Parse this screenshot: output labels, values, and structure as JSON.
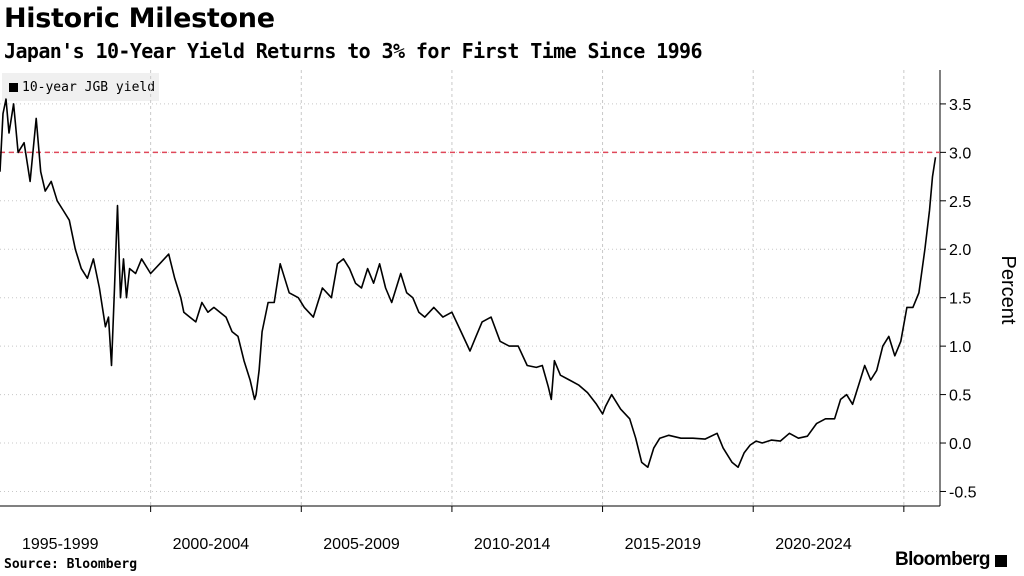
{
  "header": {
    "title": "Historic Milestone",
    "subtitle": "Japan's 10-Year Yield Returns to 3% for First Time Since 1996"
  },
  "footer": {
    "source": "Source: Bloomberg",
    "brand": "Bloomberg"
  },
  "colors": {
    "line": "#000000",
    "reference_line": "#e0485a",
    "grid": "#c8c8c8",
    "legend_bg": "#f0f0f0"
  },
  "chart_data": {
    "type": "line",
    "title": "Historic Milestone",
    "subtitle": "Japan's 10-Year Yield Returns to 3% for First Time Since 1996",
    "ylabel": "Percent",
    "xlabel": "",
    "ylim": [
      -0.65,
      3.85
    ],
    "xlim": [
      1995.0,
      2026.2
    ],
    "y_ticks": [
      "-0.5",
      "0.0",
      "0.5",
      "1.0",
      "1.5",
      "2.0",
      "2.5",
      "3.0",
      "3.5"
    ],
    "y_tick_values": [
      -0.5,
      0.0,
      0.5,
      1.0,
      1.5,
      2.0,
      2.5,
      3.0,
      3.5
    ],
    "x_tick_labels": [
      "1995-1999",
      "2000-2004",
      "2005-2009",
      "2010-2014",
      "2015-2019",
      "2020-2024"
    ],
    "x_tick_centers": [
      1997.0,
      2002.0,
      2007.0,
      2012.0,
      2017.0,
      2022.0
    ],
    "grid": "vertical dashed, horizontal dotted",
    "legend": "top-left",
    "reference_line": {
      "y": 3.0,
      "style": "dashed",
      "color": "#e0485a"
    },
    "series": [
      {
        "name": "10-year JGB yield",
        "x": [
          1995.0,
          1995.1,
          1995.2,
          1995.3,
          1995.45,
          1995.6,
          1995.8,
          1996.0,
          1996.2,
          1996.35,
          1996.5,
          1996.7,
          1996.9,
          1997.1,
          1997.3,
          1997.5,
          1997.7,
          1997.9,
          1998.1,
          1998.3,
          1998.5,
          1998.6,
          1998.7,
          1998.8,
          1998.9,
          1999.0,
          1999.1,
          1999.2,
          1999.3,
          1999.5,
          1999.7,
          2000.0,
          2000.3,
          2000.6,
          2000.8,
          2001.0,
          2001.1,
          2001.3,
          2001.5,
          2001.7,
          2001.9,
          2002.1,
          2002.3,
          2002.5,
          2002.7,
          2002.9,
          2003.1,
          2003.3,
          2003.45,
          2003.5,
          2003.6,
          2003.7,
          2003.9,
          2004.1,
          2004.3,
          2004.6,
          2004.9,
          2005.1,
          2005.4,
          2005.7,
          2006.0,
          2006.2,
          2006.4,
          2006.6,
          2006.8,
          2007.0,
          2007.2,
          2007.4,
          2007.6,
          2007.8,
          2008.0,
          2008.3,
          2008.5,
          2008.7,
          2008.9,
          2009.1,
          2009.4,
          2009.7,
          2010.0,
          2010.3,
          2010.6,
          2010.8,
          2011.0,
          2011.3,
          2011.6,
          2011.9,
          2012.2,
          2012.5,
          2012.8,
          2013.0,
          2013.2,
          2013.3,
          2013.4,
          2013.6,
          2013.9,
          2014.2,
          2014.5,
          2014.8,
          2015.0,
          2015.1,
          2015.3,
          2015.6,
          2015.9,
          2016.1,
          2016.3,
          2016.5,
          2016.7,
          2016.9,
          2017.2,
          2017.6,
          2018.0,
          2018.4,
          2018.8,
          2019.0,
          2019.3,
          2019.5,
          2019.7,
          2019.9,
          2020.1,
          2020.3,
          2020.6,
          2020.9,
          2021.2,
          2021.5,
          2021.8,
          2022.1,
          2022.4,
          2022.7,
          2022.9,
          2023.1,
          2023.3,
          2023.5,
          2023.7,
          2023.9,
          2024.1,
          2024.3,
          2024.5,
          2024.7,
          2024.9,
          2025.1,
          2025.3,
          2025.5,
          2025.7,
          2025.85,
          2025.95,
          2026.05
        ],
        "y": [
          2.8,
          3.4,
          3.55,
          3.2,
          3.5,
          3.0,
          3.1,
          2.7,
          3.35,
          2.8,
          2.6,
          2.7,
          2.5,
          2.4,
          2.3,
          2.0,
          1.8,
          1.7,
          1.9,
          1.6,
          1.2,
          1.3,
          0.8,
          1.6,
          2.45,
          1.5,
          1.9,
          1.5,
          1.8,
          1.75,
          1.9,
          1.75,
          1.85,
          1.95,
          1.7,
          1.5,
          1.35,
          1.3,
          1.25,
          1.45,
          1.35,
          1.4,
          1.35,
          1.3,
          1.15,
          1.1,
          0.85,
          0.65,
          0.45,
          0.5,
          0.75,
          1.15,
          1.45,
          1.45,
          1.85,
          1.55,
          1.5,
          1.4,
          1.3,
          1.6,
          1.5,
          1.85,
          1.9,
          1.8,
          1.65,
          1.6,
          1.8,
          1.65,
          1.85,
          1.6,
          1.45,
          1.75,
          1.55,
          1.5,
          1.35,
          1.3,
          1.4,
          1.3,
          1.35,
          1.15,
          0.95,
          1.1,
          1.25,
          1.3,
          1.05,
          1.0,
          1.0,
          0.8,
          0.78,
          0.8,
          0.58,
          0.45,
          0.85,
          0.7,
          0.65,
          0.6,
          0.52,
          0.4,
          0.3,
          0.38,
          0.5,
          0.35,
          0.25,
          0.05,
          -0.2,
          -0.25,
          -0.05,
          0.05,
          0.08,
          0.05,
          0.05,
          0.04,
          0.1,
          -0.05,
          -0.2,
          -0.25,
          -0.1,
          -0.02,
          0.02,
          0.0,
          0.03,
          0.02,
          0.1,
          0.05,
          0.07,
          0.2,
          0.25,
          0.25,
          0.45,
          0.5,
          0.4,
          0.6,
          0.8,
          0.65,
          0.75,
          1.0,
          1.1,
          0.9,
          1.05,
          1.4,
          1.4,
          1.55,
          2.0,
          2.4,
          2.75,
          2.95
        ]
      }
    ]
  }
}
